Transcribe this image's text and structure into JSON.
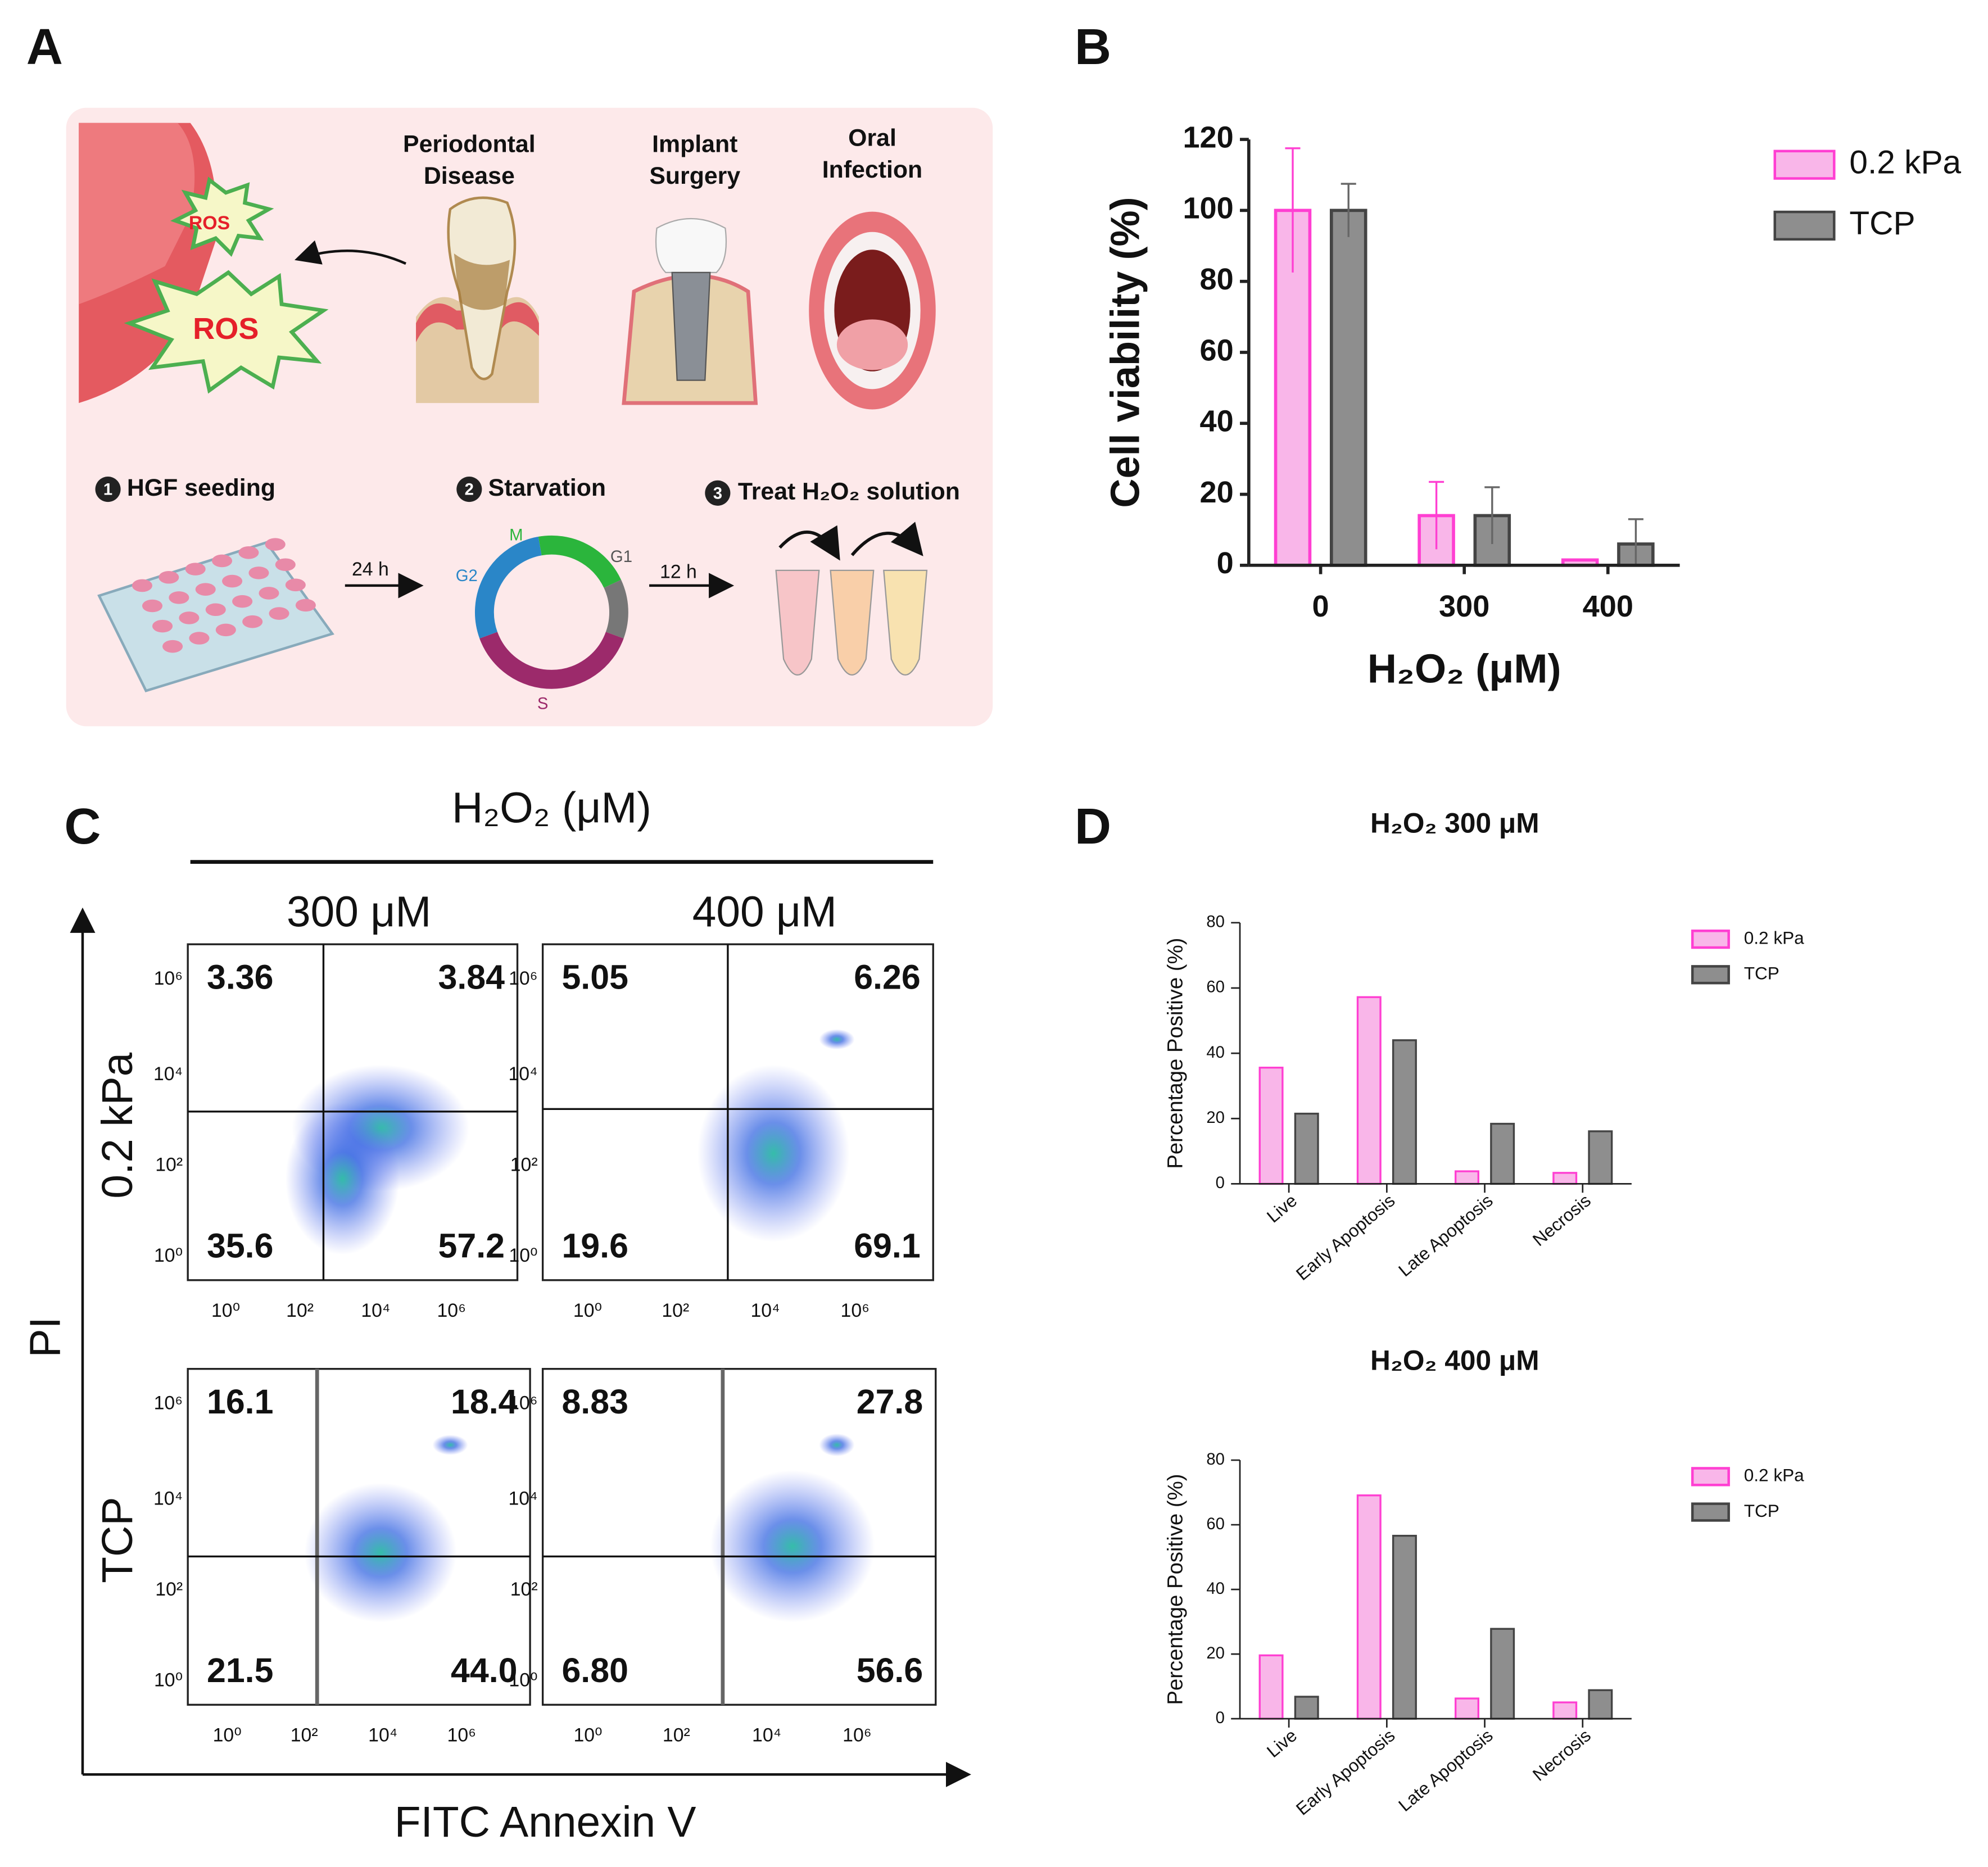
{
  "panel_labels": [
    "A",
    "B",
    "C",
    "D"
  ],
  "panel_a": {
    "ros": [
      "ROS",
      "ROS"
    ],
    "conditions": [
      [
        "Periodontal",
        "Disease"
      ],
      [
        "Implant",
        "Surgery"
      ],
      [
        "Oral",
        "Infection"
      ]
    ],
    "steps": [
      {
        "number": "1",
        "label": "HGF seeding"
      },
      {
        "number": "2",
        "label": "Starvation"
      },
      {
        "number": "3",
        "label": "Treat H₂O₂ solution"
      }
    ],
    "intervals": [
      "24 h",
      "12 h"
    ],
    "cell_cycle": [
      "M",
      "G1",
      "S",
      "G2"
    ]
  },
  "flow_cytometry": {
    "title": "H₂O₂ (μM)",
    "columns": [
      "300 μM",
      "400 μM"
    ],
    "rows": [
      "0.2 kPa",
      "TCP"
    ],
    "y_label": "PI",
    "x_label": "FITC Annexin V",
    "axis_ticks": [
      "10⁰",
      "10²",
      "10⁴",
      "10⁶"
    ],
    "plots": [
      {
        "quadrants": [
          "3.36",
          "3.84",
          "35.6",
          "57.2"
        ]
      },
      {
        "quadrants": [
          "5.05",
          "6.26",
          "19.6",
          "69.1"
        ]
      },
      {
        "quadrants": [
          "16.1",
          "18.4",
          "21.5",
          "44.0"
        ]
      },
      {
        "quadrants": [
          "8.83",
          "27.8",
          "6.80",
          "56.6"
        ]
      }
    ]
  },
  "chart_data": [
    {
      "type": "bar",
      "y_label": "Cell viability (%)",
      "x_label": "H₂O₂  (μM)",
      "categories": [
        "0",
        "300",
        "400"
      ],
      "series": [
        {
          "name": "0.2 kPa",
          "color": "#f9b6e9",
          "edgecolor": "#ff3fd2",
          "values": [
            100,
            14,
            1.5
          ],
          "errors": [
            17.5,
            9.5,
            0
          ]
        },
        {
          "name": "TCP",
          "color": "#8e8e8e",
          "edgecolor": "#444444",
          "values": [
            100,
            14,
            6
          ],
          "errors": [
            7.5,
            8,
            7
          ]
        }
      ],
      "ylim": [
        0,
        120
      ],
      "yticks": [
        0,
        20,
        40,
        60,
        80,
        100,
        120
      ],
      "legend": "right"
    },
    {
      "type": "bar",
      "title": "H₂O₂ 300 μM",
      "y_label": "Percentage Positive (%)",
      "categories": [
        "Live",
        "Early Apoptosis",
        "Late Apoptosis",
        "Necrosis"
      ],
      "series": [
        {
          "name": "0.2 kPa",
          "color": "#f9b6e9",
          "edgecolor": "#ff3fd2",
          "values": [
            35.6,
            57.2,
            3.84,
            3.36
          ]
        },
        {
          "name": "TCP",
          "color": "#8e8e8e",
          "edgecolor": "#444444",
          "values": [
            21.5,
            44.0,
            18.4,
            16.1
          ]
        }
      ],
      "ylim": [
        0,
        80
      ],
      "yticks": [
        0,
        20,
        40,
        60,
        80
      ],
      "legend": "right"
    },
    {
      "type": "bar",
      "title": "H₂O₂ 400 μM",
      "y_label": "Percentage Positive (%)",
      "categories": [
        "Live",
        "Early Apoptosis",
        "Late Apoptosis",
        "Necrosis"
      ],
      "series": [
        {
          "name": "0.2 kPa",
          "color": "#f9b6e9",
          "edgecolor": "#ff3fd2",
          "values": [
            19.6,
            69.1,
            6.26,
            5.05
          ]
        },
        {
          "name": "TCP",
          "color": "#8e8e8e",
          "edgecolor": "#444444",
          "values": [
            6.8,
            56.6,
            27.8,
            8.83
          ]
        }
      ],
      "ylim": [
        0,
        80
      ],
      "yticks": [
        0,
        20,
        40,
        60,
        80
      ],
      "legend": "right"
    }
  ]
}
